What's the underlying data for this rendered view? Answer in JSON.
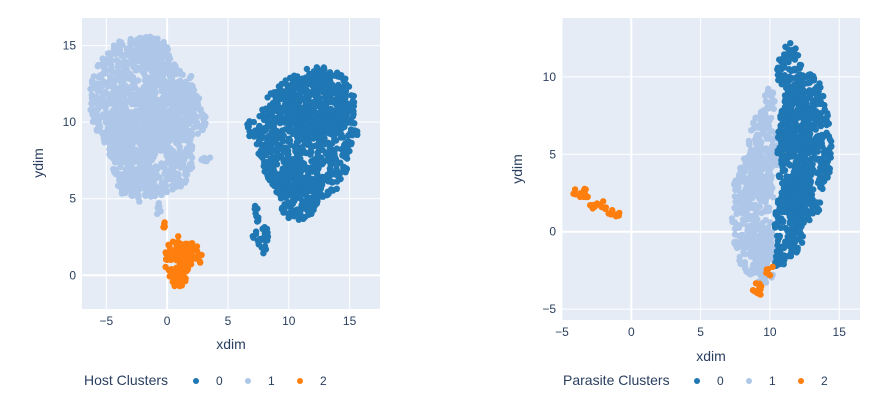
{
  "colors": {
    "cluster_0": "#1f77b4",
    "cluster_1": "#aec7e8",
    "cluster_2": "#ff7f0e",
    "plot_bg": "#e5ecf6",
    "grid": "#ffffff",
    "text": "#2a3f5f"
  },
  "chart_data": [
    {
      "type": "scatter",
      "xlabel": "xdim",
      "ylabel": "ydim",
      "xlim": [
        -7,
        17.5
      ],
      "ylim": [
        -2.2,
        16.8
      ],
      "xticks": [
        -5,
        0,
        5,
        10,
        15
      ],
      "yticks": [
        0,
        5,
        10,
        15
      ],
      "grid": true,
      "legend": {
        "title": "Host Clusters",
        "entries": [
          "0",
          "1",
          "2"
        ],
        "placement": "bottom-left"
      },
      "clusters": [
        {
          "name": "0",
          "color": "#1f77b4",
          "blobs": [
            {
              "cx": 11.5,
              "cy": 9.0,
              "rx": 4.3,
              "ry": 4.3
            },
            {
              "cx": 12.5,
              "cy": 11.3,
              "rx": 3.0,
              "ry": 2.4
            },
            {
              "cx": 10.7,
              "cy": 5.5,
              "rx": 1.9,
              "ry": 2.0
            },
            {
              "cx": 7.0,
              "cy": 9.6,
              "rx": 0.6,
              "ry": 0.6
            },
            {
              "cx": 7.7,
              "cy": 2.6,
              "rx": 0.7,
              "ry": 0.7
            },
            {
              "cx": 7.3,
              "cy": 4.0,
              "rx": 0.3,
              "ry": 0.7
            },
            {
              "cx": 7.9,
              "cy": 1.7,
              "rx": 0.3,
              "ry": 0.4
            }
          ]
        },
        {
          "name": "1",
          "color": "#aec7e8",
          "blobs": [
            {
              "cx": -2.5,
              "cy": 11.5,
              "rx": 4.0,
              "ry": 4.2
            },
            {
              "cx": -1.2,
              "cy": 8.0,
              "rx": 3.7,
              "ry": 3.0
            },
            {
              "cx": 0.2,
              "cy": 11.5,
              "rx": 2.5,
              "ry": 2.3
            },
            {
              "cx": 1.7,
              "cy": 10.2,
              "rx": 1.6,
              "ry": 1.5
            },
            {
              "cx": -2.6,
              "cy": 6.3,
              "rx": 1.6,
              "ry": 1.6
            },
            {
              "cx": -3.8,
              "cy": 9.5,
              "rx": 1.4,
              "ry": 1.6
            },
            {
              "cx": -1.5,
              "cy": 14.5,
              "rx": 1.8,
              "ry": 1.2
            },
            {
              "cx": -0.6,
              "cy": 4.3,
              "rx": 0.3,
              "ry": 0.5
            },
            {
              "cx": 3.2,
              "cy": 7.6,
              "rx": 0.7,
              "ry": 0.2
            }
          ]
        },
        {
          "name": "2",
          "color": "#ff7f0e",
          "blobs": [
            {
              "cx": 0.8,
              "cy": 1.0,
              "rx": 1.0,
              "ry": 1.7
            },
            {
              "cx": 1.8,
              "cy": 1.2,
              "rx": 1.1,
              "ry": 1.0
            },
            {
              "cx": 1.0,
              "cy": -0.4,
              "rx": 0.6,
              "ry": 0.5
            },
            {
              "cx": -0.2,
              "cy": 3.3,
              "rx": 0.2,
              "ry": 0.2
            }
          ]
        }
      ]
    },
    {
      "type": "scatter",
      "xlabel": "xdim",
      "ylabel": "ydim",
      "xlim": [
        -5,
        16.5
      ],
      "ylim": [
        -5.7,
        13.8
      ],
      "xticks": [
        -5,
        0,
        5,
        10,
        15
      ],
      "yticks": [
        -5,
        0,
        5,
        10
      ],
      "grid": true,
      "legend": {
        "title": "Parasite Clusters",
        "entries": [
          "0",
          "1",
          "2"
        ],
        "placement": "bottom-left"
      },
      "clusters": [
        {
          "name": "1",
          "color": "#aec7e8",
          "blobs": [
            {
              "cx": 8.8,
              "cy": 1.2,
              "rx": 1.6,
              "ry": 4.2
            },
            {
              "cx": 9.5,
              "cy": 5.0,
              "rx": 1.1,
              "ry": 3.0
            },
            {
              "cx": 9.6,
              "cy": -1.8,
              "rx": 0.8,
              "ry": 1.8
            },
            {
              "cx": 10.0,
              "cy": 8.5,
              "rx": 0.4,
              "ry": 0.9
            }
          ]
        },
        {
          "name": "0",
          "color": "#1f77b4",
          "blobs": [
            {
              "cx": 12.6,
              "cy": 5.5,
              "rx": 1.9,
              "ry": 5.0
            },
            {
              "cx": 11.4,
              "cy": 10.3,
              "rx": 0.9,
              "ry": 2.0
            },
            {
              "cx": 11.4,
              "cy": 0.5,
              "rx": 1.1,
              "ry": 2.5
            },
            {
              "cx": 10.7,
              "cy": -1.9,
              "rx": 0.4,
              "ry": 0.8
            },
            {
              "cx": 11.8,
              "cy": 5.0,
              "rx": 1.3,
              "ry": 4.6
            }
          ]
        },
        {
          "name": "2",
          "color": "#ff7f0e",
          "blobs": [
            {
              "cx": -3.6,
              "cy": 2.5,
              "rx": 0.6,
              "ry": 0.5
            },
            {
              "cx": -2.3,
              "cy": 1.7,
              "rx": 0.7,
              "ry": 0.4
            },
            {
              "cx": -1.3,
              "cy": 1.2,
              "rx": 0.5,
              "ry": 0.3
            },
            {
              "cx": 9.1,
              "cy": -3.8,
              "rx": 0.5,
              "ry": 0.5
            },
            {
              "cx": 10.0,
              "cy": -2.5,
              "rx": 0.3,
              "ry": 0.4
            }
          ]
        }
      ]
    }
  ]
}
